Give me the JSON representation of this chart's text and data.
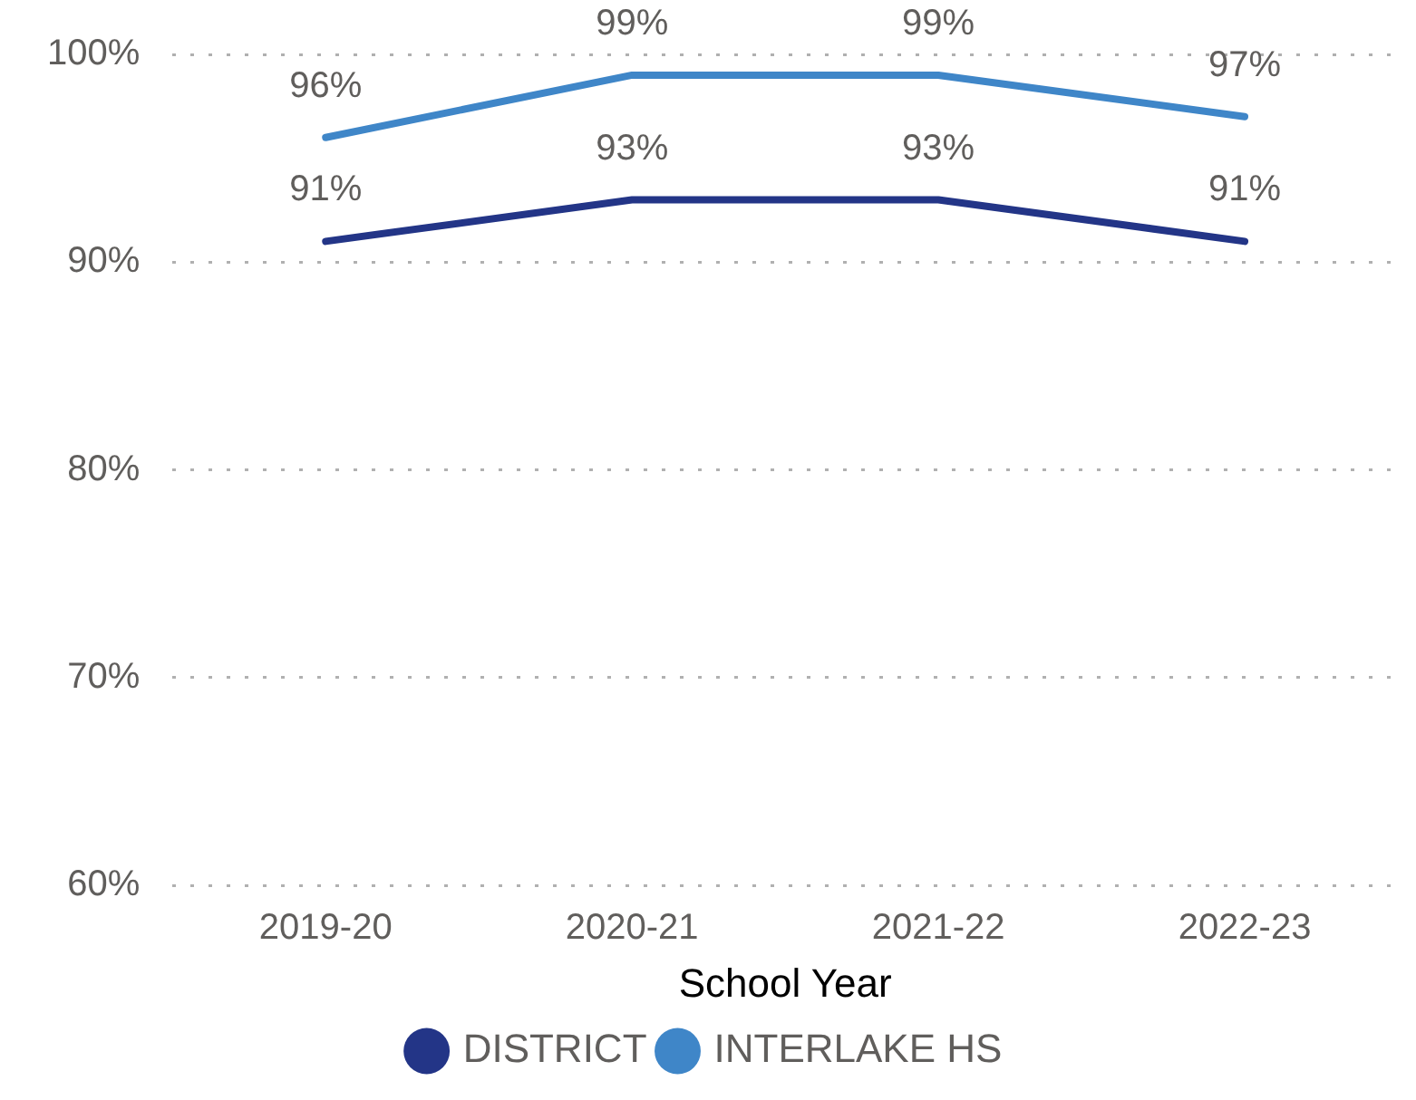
{
  "chart_data": {
    "type": "line",
    "xlabel": "School Year",
    "categories": [
      "2019-20",
      "2020-21",
      "2021-22",
      "2022-23"
    ],
    "series": [
      {
        "name": "DISTRICT",
        "color": "#233587",
        "values": [
          91,
          93,
          93,
          91
        ],
        "value_labels": [
          "91%",
          "93%",
          "93%",
          "91%"
        ]
      },
      {
        "name": "INTERLAKE HS",
        "color": "#3f86c8",
        "values": [
          96,
          99,
          99,
          97
        ],
        "value_labels": [
          "96%",
          "99%",
          "99%",
          "97%"
        ]
      }
    ],
    "ylim": [
      60,
      100
    ],
    "yticks": [
      {
        "value": 60,
        "label": "60%"
      },
      {
        "value": 70,
        "label": "70%"
      },
      {
        "value": 80,
        "label": "80%"
      },
      {
        "value": 90,
        "label": "90%"
      },
      {
        "value": 100,
        "label": "100%"
      }
    ],
    "grid": "y",
    "legend": "bottom",
    "marker": "none",
    "line_style": "solid"
  }
}
